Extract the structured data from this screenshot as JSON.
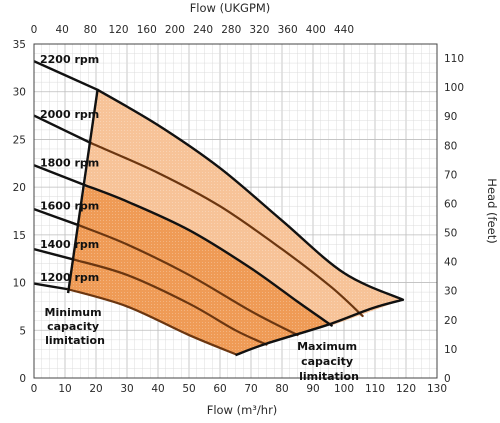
{
  "chart_data": {
    "type": "line",
    "xlabel": "Flow (m³/hr)",
    "x2label": "Flow (UKGPM)",
    "ylabel": "Head (m)",
    "y2label": "Head (feet)",
    "xlim": [
      0,
      130
    ],
    "ylim": [
      0,
      35
    ],
    "x_ticks": [
      0,
      10,
      20,
      30,
      40,
      50,
      60,
      70,
      80,
      90,
      100,
      110,
      120,
      130
    ],
    "y_ticks": [
      0,
      5,
      10,
      15,
      20,
      25,
      30,
      35
    ],
    "x2_ticks": [
      0,
      40,
      80,
      120,
      160,
      200,
      240,
      280,
      320,
      360,
      400,
      440
    ],
    "y2_ticks": [
      0,
      10,
      20,
      30,
      40,
      50,
      60,
      70,
      80,
      90,
      100,
      110
    ],
    "grid": true,
    "series": [
      {
        "name": "2200 rpm",
        "x": [
          0,
          20.5,
          40,
          60,
          80,
          100,
          119
        ],
        "y": [
          33.2,
          30.2,
          26.5,
          22,
          16.5,
          11,
          8.2
        ]
      },
      {
        "name": "2000 rpm",
        "x": [
          0,
          18.5,
          40,
          60,
          80,
          96,
          106
        ],
        "y": [
          27.5,
          24.6,
          21.5,
          18,
          13.5,
          9.5,
          6.5
        ]
      },
      {
        "name": "1800 rpm",
        "x": [
          0,
          16.5,
          30,
          50,
          70,
          85,
          96
        ],
        "y": [
          22.3,
          20.2,
          18.5,
          15.5,
          11.5,
          8,
          5.5
        ]
      },
      {
        "name": "1600 rpm",
        "x": [
          0,
          14.5,
          30,
          50,
          70,
          85
        ],
        "y": [
          17.7,
          16,
          14,
          10.8,
          7,
          4.5
        ]
      },
      {
        "name": "1400 rpm",
        "x": [
          0,
          13,
          30,
          50,
          65,
          75
        ],
        "y": [
          13.5,
          12.4,
          10.8,
          7.8,
          5,
          3.5
        ]
      },
      {
        "name": "1200 rpm",
        "x": [
          0,
          11,
          30,
          50,
          65
        ],
        "y": [
          9.9,
          9.3,
          7.5,
          4.5,
          2.5
        ]
      }
    ],
    "min_capacity_limit": {
      "x": [
        11,
        20.5
      ],
      "y": [
        8.9,
        30.2
      ]
    },
    "max_capacity_limit": {
      "x": [
        65,
        75,
        95,
        109,
        119
      ],
      "y": [
        2.4,
        3.6,
        5.6,
        7.3,
        8.2
      ]
    },
    "annotations": {
      "min_capacity": [
        "Minimum",
        "capacity",
        "limitation"
      ],
      "max_capacity": [
        "Maximum",
        "capacity",
        "limitation"
      ]
    },
    "fill_colors": {
      "light": "#f7c398",
      "dark": "#ef9b56"
    }
  }
}
